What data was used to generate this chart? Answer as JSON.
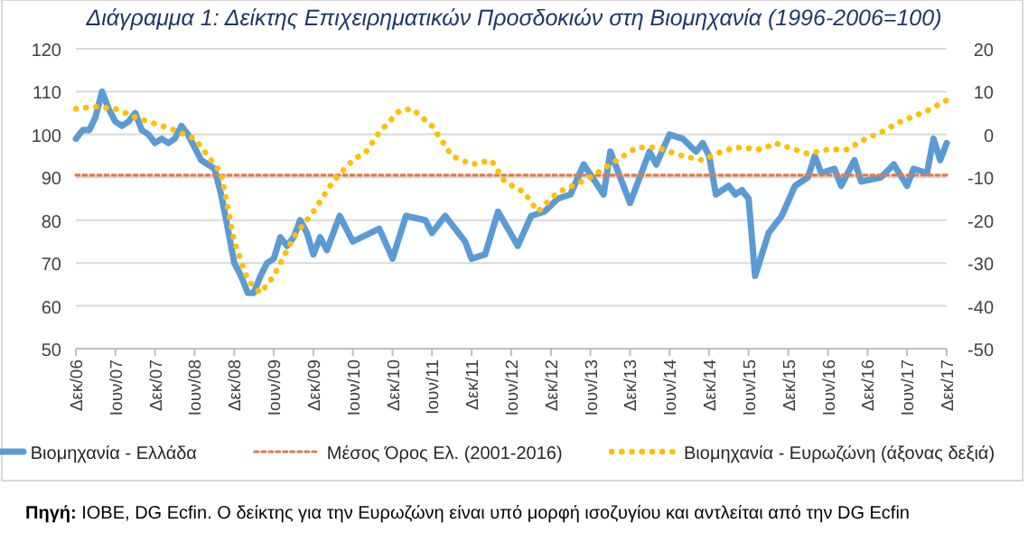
{
  "chart_data": {
    "type": "line",
    "title": "Διάγραμμα 1: Δείκτης Επιχειρηματικών Προσδοκιών στη Βιομηχανία (1996-2006=100)",
    "annotations": [
      "Πηγή: ΙΟΒΕ, DG Ecfin. Ο δείκτης για την Ευρωζώνη είναι υπό μορφή ισοζυγίου και αντλείται από την DG Ecfin"
    ],
    "xlim": [
      "2006-12",
      "2017-12"
    ],
    "xticks": [
      {
        "value": "2006-12",
        "label": "Δεκ/06"
      },
      {
        "value": "2007-06",
        "label": "Ιουν/07"
      },
      {
        "value": "2007-12",
        "label": "Δεκ/07"
      },
      {
        "value": "2008-06",
        "label": "Ιουν/08"
      },
      {
        "value": "2008-12",
        "label": "Δεκ/08"
      },
      {
        "value": "2009-06",
        "label": "Ιουν/09"
      },
      {
        "value": "2009-12",
        "label": "Δεκ/09"
      },
      {
        "value": "2010-06",
        "label": "Ιουν/10"
      },
      {
        "value": "2010-12",
        "label": "Δεκ/10"
      },
      {
        "value": "2011-06",
        "label": "Ιουν/11"
      },
      {
        "value": "2011-12",
        "label": "Δεκ/11"
      },
      {
        "value": "2012-06",
        "label": "Ιουν/12"
      },
      {
        "value": "2012-12",
        "label": "Δεκ/12"
      },
      {
        "value": "2013-06",
        "label": "Ιουν/13"
      },
      {
        "value": "2013-12",
        "label": "Δεκ/13"
      },
      {
        "value": "2014-06",
        "label": "Ιουν/14"
      },
      {
        "value": "2014-12",
        "label": "Δεκ/14"
      },
      {
        "value": "2015-06",
        "label": "Ιουν/15"
      },
      {
        "value": "2015-12",
        "label": "Δεκ/15"
      },
      {
        "value": "2016-06",
        "label": "Ιουν/16"
      },
      {
        "value": "2016-12",
        "label": "Δεκ/16"
      },
      {
        "value": "2017-06",
        "label": "Ιουν/17"
      },
      {
        "value": "2017-12",
        "label": "Δεκ/17"
      }
    ],
    "ylim": [
      50,
      120
    ],
    "yticks": [
      50,
      60,
      70,
      80,
      90,
      100,
      110,
      120
    ],
    "y2lim": [
      -50,
      20
    ],
    "y2ticks": [
      -50,
      -40,
      -30,
      -20,
      -10,
      0,
      10,
      20
    ],
    "grid": "y",
    "legend": "bottom",
    "series": [
      {
        "name": "Βιομηχανία  - Ελλάδα",
        "color": "#5b9bd5",
        "line_style": "solid",
        "x": [
          "2006-12",
          "2007-01",
          "2007-02",
          "2007-03",
          "2007-04",
          "2007-05",
          "2007-06",
          "2007-07",
          "2007-08",
          "2007-09",
          "2007-10",
          "2007-11",
          "2007-12",
          "2008-01",
          "2008-02",
          "2008-03",
          "2008-04",
          "2008-05",
          "2008-06",
          "2008-07",
          "2008-08",
          "2008-09",
          "2008-10",
          "2008-11",
          "2008-12",
          "2009-01",
          "2009-02",
          "2009-03",
          "2009-04",
          "2009-05",
          "2009-06",
          "2009-07",
          "2009-08",
          "2009-09",
          "2009-10",
          "2009-11",
          "2009-12",
          "2010-01",
          "2010-02",
          "2010-04",
          "2010-06",
          "2010-10",
          "2010-12",
          "2011-02",
          "2011-05",
          "2011-06",
          "2011-08",
          "2011-11",
          "2011-12",
          "2012-02",
          "2012-04",
          "2012-07",
          "2012-09",
          "2012-11",
          "2013-01",
          "2013-03",
          "2013-05",
          "2013-08",
          "2013-09",
          "2013-12",
          "2014-03",
          "2014-04",
          "2014-06",
          "2014-08",
          "2014-10",
          "2014-11",
          "2014-12",
          "2015-01",
          "2015-03",
          "2015-04",
          "2015-05",
          "2015-06",
          "2015-07",
          "2015-09",
          "2015-11",
          "2016-01",
          "2016-03",
          "2016-04",
          "2016-05",
          "2016-07",
          "2016-08",
          "2016-10",
          "2016-11",
          "2017-02",
          "2017-04",
          "2017-06",
          "2017-07",
          "2017-09",
          "2017-10",
          "2017-11",
          "2017-12"
        ],
        "values": [
          99,
          101,
          101,
          104,
          110,
          106,
          103,
          102,
          103,
          105,
          101,
          100,
          98,
          99,
          98,
          99,
          102,
          100,
          97,
          94,
          93,
          92,
          86,
          78,
          70,
          67,
          63,
          63,
          67,
          70,
          71,
          76,
          74,
          76,
          80,
          77,
          72,
          76,
          73,
          81,
          75,
          78,
          71,
          81,
          80,
          77,
          81,
          75,
          71,
          72,
          82,
          74,
          81,
          82,
          85,
          86,
          93,
          86,
          96,
          84,
          96,
          93,
          100,
          99,
          96,
          98,
          95,
          86,
          88,
          86,
          87,
          85,
          67,
          77,
          81,
          88,
          90,
          95,
          91,
          92,
          88,
          94,
          89,
          90,
          93,
          88,
          92,
          91,
          99,
          94,
          98
        ]
      },
      {
        "name": "Μέσος Όρος Ελ. (2001-2016)",
        "color": "#e07b4a",
        "line_style": "dashed",
        "x": [
          "2006-12",
          "2017-12"
        ],
        "values": [
          90.5,
          90.5
        ]
      },
      {
        "name": "Βιομηχανία - Ευρωζώνη (άξονας δεξιά)",
        "color": "#ffc000",
        "line_style": "dotted",
        "axis": "y2",
        "x": [
          "2006-12",
          "2007-03",
          "2007-06",
          "2007-09",
          "2007-12",
          "2008-03",
          "2008-06",
          "2008-08",
          "2008-10",
          "2008-12",
          "2009-02",
          "2009-04",
          "2009-06",
          "2009-09",
          "2009-12",
          "2010-03",
          "2010-06",
          "2010-08",
          "2010-10",
          "2011-01",
          "2011-03",
          "2011-06",
          "2011-09",
          "2011-12",
          "2012-03",
          "2012-05",
          "2012-08",
          "2012-10",
          "2013-01",
          "2013-04",
          "2013-06",
          "2013-10",
          "2014-01",
          "2014-04",
          "2014-08",
          "2014-11",
          "2015-01",
          "2015-04",
          "2015-08",
          "2015-10",
          "2015-12",
          "2016-03",
          "2016-06",
          "2016-09",
          "2016-11",
          "2017-02",
          "2017-05",
          "2017-09",
          "2017-12"
        ],
        "values": [
          6,
          6.5,
          6,
          4,
          2.5,
          1,
          -1,
          -5,
          -9,
          -25,
          -34,
          -37,
          -33,
          -24,
          -18,
          -11,
          -6,
          -4,
          0.5,
          5.5,
          6,
          2,
          -5,
          -7,
          -6,
          -11,
          -13.5,
          -18,
          -13.5,
          -11.5,
          -10,
          -6,
          -3,
          -3,
          -5,
          -6,
          -4.5,
          -3,
          -3.5,
          -2,
          -3,
          -4.5,
          -3.5,
          -3.5,
          -1.5,
          0.5,
          3,
          5.5,
          8
        ]
      }
    ]
  }
}
